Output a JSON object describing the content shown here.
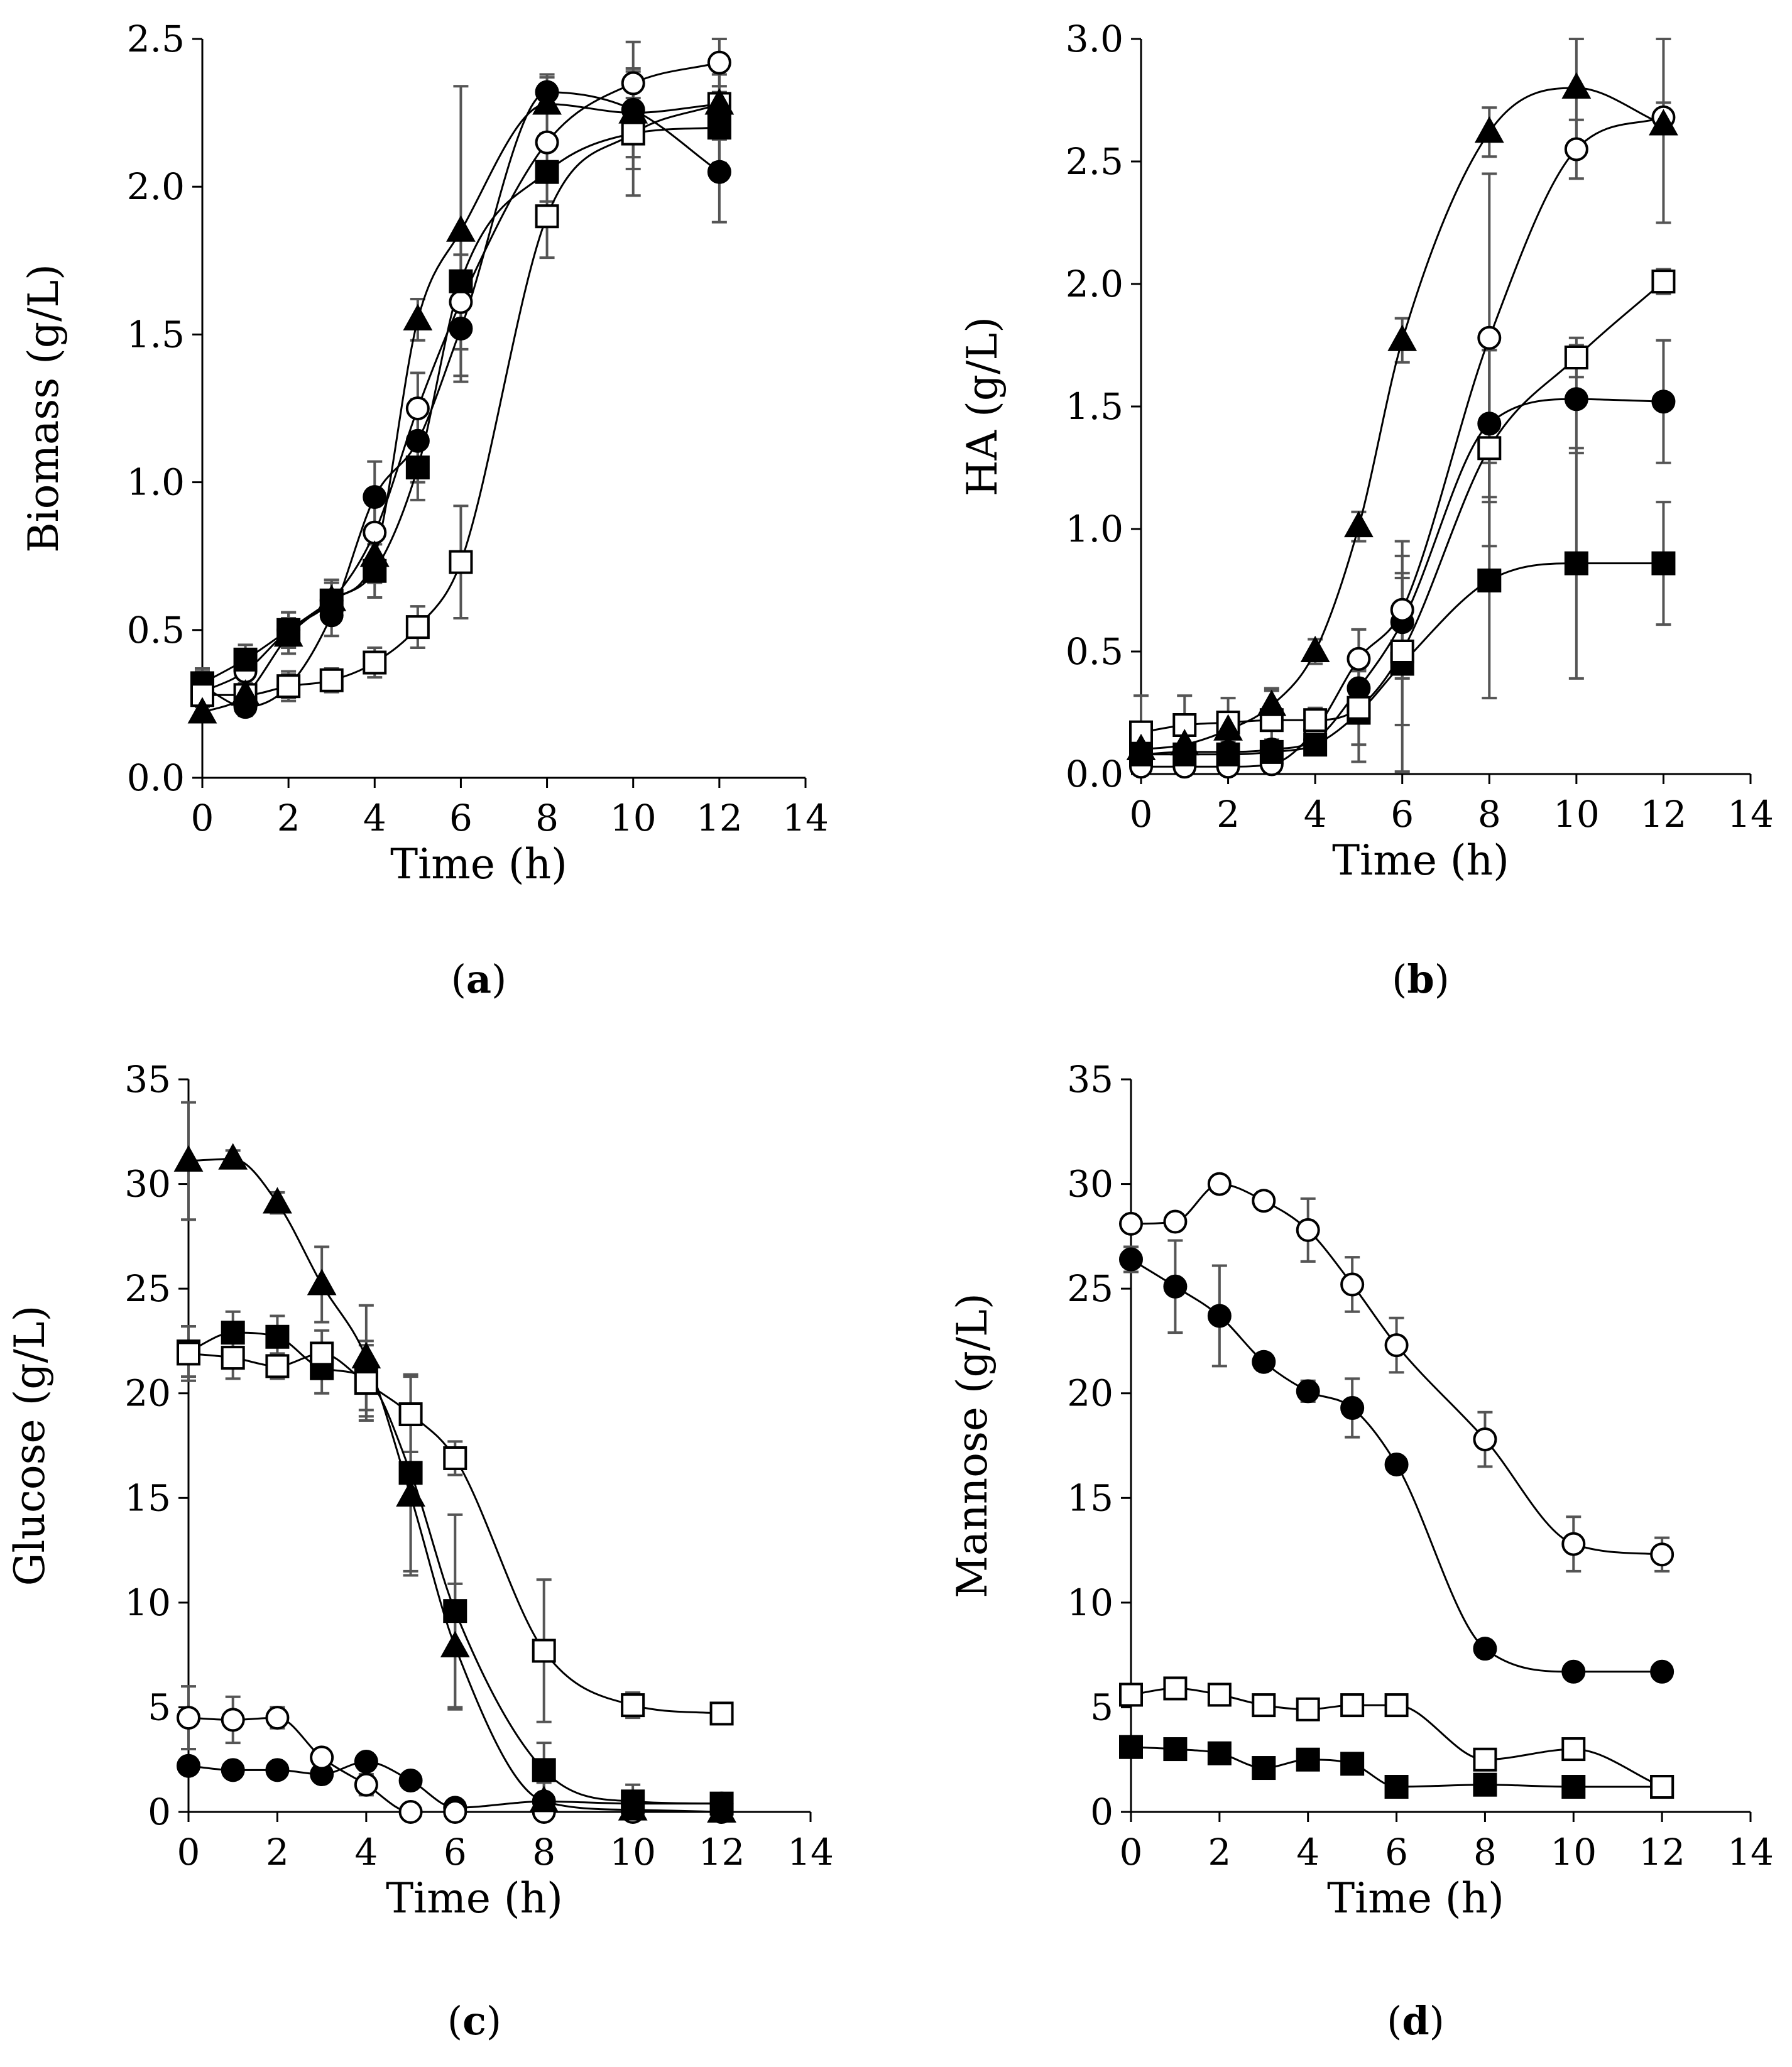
{
  "charts": [
    {
      "id": "a",
      "type": "scatter",
      "caption": {
        "open": "(",
        "letter": "a",
        "close": ")"
      },
      "xlabel": "Time (h)",
      "ylabel": "Biomass (g/L)",
      "xlim": [
        0,
        14
      ],
      "xticks": [
        0,
        2,
        4,
        6,
        8,
        10,
        12,
        14
      ],
      "xticklabels": [
        "0",
        "2",
        "4",
        "6",
        "8",
        "10",
        "12",
        "14"
      ],
      "ylim": [
        0,
        2.5
      ],
      "yticks": [
        0,
        0.5,
        1.0,
        1.5,
        2.0,
        2.5
      ],
      "yticklabels": [
        "0.0",
        "0.5",
        "1.0",
        "1.5",
        "2.0",
        "2.5"
      ],
      "series": [
        {
          "name": "filled-circle",
          "marker": "circle",
          "fill": "#000000",
          "x": [
            0,
            1,
            2,
            3,
            4,
            5,
            6,
            8,
            10,
            12
          ],
          "y": [
            0.31,
            0.24,
            0.31,
            0.55,
            0.95,
            1.14,
            1.52,
            2.32,
            2.26,
            2.05
          ],
          "err": [
            0.05,
            0.03,
            0.05,
            0.07,
            0.12,
            0.14,
            0.18,
            0.05,
            0.09,
            0.17
          ]
        },
        {
          "name": "open-circle",
          "marker": "circle",
          "fill": "#ffffff",
          "x": [
            0,
            1,
            2,
            3,
            4,
            5,
            6,
            8,
            10,
            12
          ],
          "y": [
            0.29,
            0.36,
            0.5,
            0.6,
            0.83,
            1.25,
            1.61,
            2.15,
            2.35,
            2.42
          ],
          "err": [
            0.04,
            0.04,
            0.06,
            0.06,
            0.1,
            0.12,
            0.16,
            0.12,
            0.14,
            0.08
          ]
        },
        {
          "name": "filled-square",
          "marker": "square",
          "fill": "#000000",
          "x": [
            0,
            1,
            2,
            3,
            4,
            5,
            6,
            8,
            10,
            12
          ],
          "y": [
            0.32,
            0.4,
            0.5,
            0.6,
            0.7,
            1.05,
            1.68,
            2.05,
            2.18,
            2.2
          ],
          "err": [
            0.05,
            0.05,
            0.06,
            0.07,
            0.09,
            0.11,
            0.15,
            0.1,
            0.12,
            0.12
          ]
        },
        {
          "name": "open-square",
          "marker": "square",
          "fill": "#ffffff",
          "x": [
            0,
            1,
            2,
            3,
            4,
            5,
            6,
            8,
            10,
            12
          ],
          "y": [
            0.28,
            0.28,
            0.31,
            0.33,
            0.39,
            0.51,
            0.73,
            1.9,
            2.18,
            2.28
          ],
          "err": [
            0.04,
            0.03,
            0.04,
            0.04,
            0.05,
            0.07,
            0.19,
            0.14,
            0.21,
            0.1
          ]
        },
        {
          "name": "filled-triangle",
          "marker": "triangle",
          "fill": "#000000",
          "x": [
            0,
            1,
            2,
            3,
            4,
            5,
            6,
            8,
            10,
            12
          ],
          "y": [
            0.22,
            0.28,
            0.48,
            0.6,
            0.75,
            1.55,
            1.85,
            2.28,
            2.25,
            2.28
          ],
          "err": [
            0.03,
            0.04,
            0.06,
            0.07,
            0.09,
            0.07,
            0.49,
            0.1,
            0.15,
            0.12
          ]
        }
      ]
    },
    {
      "id": "b",
      "type": "scatter",
      "caption": {
        "open": "(",
        "letter": "b",
        "close": ")"
      },
      "xlabel": "Time (h)",
      "ylabel": "HA (g/L)",
      "xlim": [
        0,
        14
      ],
      "xticks": [
        0,
        2,
        4,
        6,
        8,
        10,
        12,
        14
      ],
      "xticklabels": [
        "0",
        "2",
        "4",
        "6",
        "8",
        "10",
        "12",
        "14"
      ],
      "ylim": [
        0,
        3.0
      ],
      "yticks": [
        0,
        0.5,
        1.0,
        1.5,
        2.0,
        2.5,
        3.0
      ],
      "yticklabels": [
        "0.0",
        "0.5",
        "1.0",
        "1.5",
        "2.0",
        "2.5",
        "3.0"
      ],
      "series": [
        {
          "name": "filled-circle",
          "marker": "circle",
          "fill": "#000000",
          "x": [
            0,
            1,
            2,
            3,
            4,
            5,
            6,
            8,
            10,
            12
          ],
          "y": [
            0.08,
            0.09,
            0.09,
            0.1,
            0.14,
            0.35,
            0.62,
            1.43,
            1.53,
            1.52
          ],
          "err": [
            0.03,
            0.03,
            0.03,
            0.04,
            0.05,
            0.08,
            0.2,
            0.3,
            0.22,
            0.25
          ]
        },
        {
          "name": "open-circle",
          "marker": "circle",
          "fill": "#ffffff",
          "x": [
            0,
            1,
            2,
            3,
            4,
            5,
            6,
            8,
            10,
            12
          ],
          "y": [
            0.03,
            0.03,
            0.03,
            0.04,
            0.18,
            0.47,
            0.67,
            1.78,
            2.55,
            2.68
          ],
          "err": [
            0.02,
            0.02,
            0.02,
            0.03,
            0.05,
            0.12,
            0.28,
            0.67,
            0.12,
            0.06
          ]
        },
        {
          "name": "filled-square",
          "marker": "square",
          "fill": "#000000",
          "x": [
            0,
            1,
            2,
            3,
            4,
            5,
            6,
            8,
            10,
            12
          ],
          "y": [
            0.08,
            0.08,
            0.08,
            0.09,
            0.12,
            0.25,
            0.45,
            0.79,
            0.86,
            0.86
          ],
          "err": [
            0.03,
            0.03,
            0.03,
            0.03,
            0.04,
            0.2,
            0.44,
            0.48,
            0.47,
            0.25
          ]
        },
        {
          "name": "open-square",
          "marker": "square",
          "fill": "#ffffff",
          "x": [
            0,
            1,
            2,
            3,
            4,
            5,
            6,
            8,
            10,
            12
          ],
          "y": [
            0.17,
            0.2,
            0.21,
            0.22,
            0.22,
            0.27,
            0.5,
            1.33,
            1.7,
            2.01
          ],
          "err": [
            0.15,
            0.12,
            0.1,
            0.12,
            0.05,
            0.15,
            0.3,
            0.4,
            0.08,
            0.05
          ]
        },
        {
          "name": "filled-triangle",
          "marker": "triangle",
          "fill": "#000000",
          "x": [
            0,
            1,
            2,
            3,
            4,
            5,
            6,
            8,
            10,
            12
          ],
          "y": [
            0.1,
            0.12,
            0.18,
            0.28,
            0.5,
            1.01,
            1.77,
            2.62,
            2.8,
            2.65
          ],
          "err": [
            0.04,
            0.04,
            0.05,
            0.07,
            0.05,
            0.06,
            0.09,
            0.1,
            0.25,
            0.4
          ]
        }
      ]
    },
    {
      "id": "c",
      "type": "scatter",
      "caption": {
        "open": "(",
        "letter": "c",
        "close": ")"
      },
      "xlabel": "Time (h)",
      "ylabel": "Glucose (g/L)",
      "xlim": [
        0,
        14
      ],
      "xticks": [
        0,
        2,
        4,
        6,
        8,
        10,
        12,
        14
      ],
      "xticklabels": [
        "0",
        "2",
        "4",
        "6",
        "8",
        "10",
        "12",
        "14"
      ],
      "ylim": [
        0,
        35
      ],
      "yticks": [
        0,
        5,
        10,
        15,
        20,
        25,
        30,
        35
      ],
      "yticklabels": [
        "0",
        "5",
        "10",
        "15",
        "20",
        "25",
        "30",
        "35"
      ],
      "series": [
        {
          "name": "filled-circle",
          "marker": "circle",
          "fill": "#000000",
          "x": [
            0,
            1,
            2,
            3,
            4,
            5,
            6,
            8,
            10,
            12
          ],
          "y": [
            2.2,
            2.0,
            2.0,
            1.8,
            2.4,
            1.5,
            0.2,
            0.5,
            0.4,
            0.4
          ],
          "err": [
            0.4,
            0.3,
            0.3,
            0.3,
            0.4,
            0.3,
            0.2,
            0.2,
            0.2,
            0.2
          ]
        },
        {
          "name": "open-circle",
          "marker": "circle",
          "fill": "#ffffff",
          "x": [
            0,
            1,
            2,
            3,
            4,
            5,
            6,
            8,
            10,
            12
          ],
          "y": [
            4.5,
            4.4,
            4.5,
            2.6,
            1.3,
            0.0,
            0.0,
            0.0,
            0.0,
            0.0
          ],
          "err": [
            1.5,
            1.1,
            0.5,
            0.4,
            0.5,
            0.2,
            0.2,
            0.1,
            0.1,
            0.1
          ]
        },
        {
          "name": "filled-square",
          "marker": "square",
          "fill": "#000000",
          "x": [
            0,
            1,
            2,
            3,
            4,
            5,
            6,
            8,
            10,
            12
          ],
          "y": [
            22.0,
            22.9,
            22.7,
            21.2,
            20.7,
            16.2,
            9.6,
            2.0,
            0.5,
            0.4
          ],
          "err": [
            1.2,
            1.0,
            1.0,
            1.2,
            1.8,
            4.7,
            4.6,
            1.3,
            0.8,
            0.5
          ]
        },
        {
          "name": "open-square",
          "marker": "square",
          "fill": "#ffffff",
          "x": [
            0,
            1,
            2,
            3,
            4,
            5,
            6,
            8,
            10,
            12
          ],
          "y": [
            21.9,
            21.7,
            21.3,
            21.9,
            20.5,
            19.0,
            16.9,
            7.7,
            5.1,
            4.7
          ],
          "err": [
            1.3,
            1.0,
            0.6,
            1.1,
            1.8,
            1.8,
            0.8,
            3.4,
            0.6,
            0.4
          ]
        },
        {
          "name": "filled-triangle",
          "marker": "triangle",
          "fill": "#000000",
          "x": [
            0,
            1,
            2,
            3,
            4,
            5,
            6,
            8,
            10,
            12
          ],
          "y": [
            31.1,
            31.2,
            29.1,
            25.2,
            21.7,
            15.1,
            7.9,
            0.5,
            0.1,
            0.0
          ],
          "err": [
            2.8,
            0.4,
            0.5,
            1.8,
            2.5,
            3.8,
            3.0,
            0.9,
            0.5,
            0.3
          ]
        }
      ]
    },
    {
      "id": "d",
      "type": "scatter",
      "caption": {
        "open": "(",
        "letter": "d",
        "close": ")"
      },
      "xlabel": "Time (h)",
      "ylabel": "Mannose (g/L)",
      "xlim": [
        0,
        14
      ],
      "xticks": [
        0,
        2,
        4,
        6,
        8,
        10,
        12,
        14
      ],
      "xticklabels": [
        "0",
        "2",
        "4",
        "6",
        "8",
        "10",
        "12",
        "14"
      ],
      "ylim": [
        0,
        35
      ],
      "yticks": [
        0,
        5,
        10,
        15,
        20,
        25,
        30,
        35
      ],
      "yticklabels": [
        "0",
        "5",
        "10",
        "15",
        "20",
        "25",
        "30",
        "35"
      ],
      "series": [
        {
          "name": "filled-circle",
          "marker": "circle",
          "fill": "#000000",
          "x": [
            0,
            1,
            2,
            3,
            4,
            5,
            6,
            8,
            10,
            12
          ],
          "y": [
            26.4,
            25.1,
            23.7,
            21.5,
            20.1,
            19.3,
            16.6,
            7.8,
            6.7,
            6.7
          ],
          "err": [
            0.6,
            2.2,
            2.4,
            0.4,
            0.5,
            1.4,
            0.4,
            0.4,
            0.3,
            0.3
          ]
        },
        {
          "name": "open-circle",
          "marker": "circle",
          "fill": "#ffffff",
          "x": [
            0,
            1,
            2,
            3,
            4,
            5,
            6,
            8,
            10,
            12
          ],
          "y": [
            28.1,
            28.2,
            30.0,
            29.2,
            27.8,
            25.2,
            22.3,
            17.8,
            12.8,
            12.3
          ],
          "err": [
            0.3,
            0.3,
            0.3,
            0.4,
            1.5,
            1.3,
            1.3,
            1.3,
            1.3,
            0.8
          ]
        },
        {
          "name": "filled-square",
          "marker": "square",
          "fill": "#000000",
          "x": [
            0,
            1,
            2,
            3,
            4,
            5,
            6,
            8,
            10,
            12
          ],
          "y": [
            3.1,
            3.0,
            2.8,
            2.1,
            2.5,
            2.3,
            1.2,
            1.3,
            1.2,
            1.2
          ],
          "err": [
            0.2,
            0.2,
            0.2,
            0.2,
            0.2,
            0.2,
            0.2,
            0.2,
            0.2,
            0.2
          ]
        },
        {
          "name": "open-square",
          "marker": "square",
          "fill": "#ffffff",
          "x": [
            0,
            1,
            2,
            3,
            4,
            5,
            6,
            8,
            10,
            12
          ],
          "y": [
            5.6,
            5.9,
            5.6,
            5.1,
            4.9,
            5.1,
            5.1,
            2.5,
            3.0,
            1.2
          ],
          "err": [
            0.3,
            0.3,
            0.3,
            0.3,
            0.3,
            0.3,
            0.3,
            0.3,
            0.3,
            0.3
          ]
        }
      ]
    }
  ]
}
